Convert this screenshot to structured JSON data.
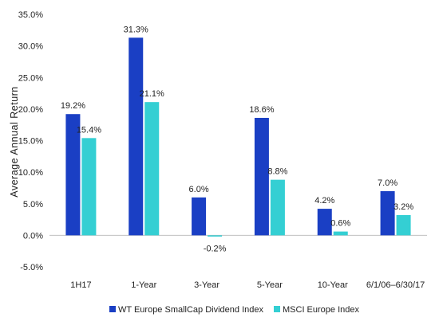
{
  "chart_data": {
    "type": "bar",
    "ylabel": "Average Annual Return",
    "xlabel": "",
    "ylim": [
      -5,
      35
    ],
    "y_ticks": [
      "-5.0%",
      "0.0%",
      "5.0%",
      "10.0%",
      "15.0%",
      "20.0%",
      "25.0%",
      "30.0%",
      "35.0%"
    ],
    "grid": false,
    "legend_position": "bottom",
    "categories": [
      "1H17",
      "1-Year",
      "3-Year",
      "5-Year",
      "10-Year",
      "6/1/06–6/30/17"
    ],
    "series": [
      {
        "name": "WT Europe SmallCap Dividend Index",
        "color": "#1a3fc4",
        "values": [
          19.2,
          31.3,
          6.0,
          18.6,
          4.2,
          7.0
        ],
        "labels": [
          "19.2%",
          "31.3%",
          "6.0%",
          "18.6%",
          "4.2%",
          "7.0%"
        ]
      },
      {
        "name": "MSCI Europe Index",
        "color": "#34cfd3",
        "values": [
          15.4,
          21.1,
          -0.2,
          8.8,
          0.6,
          3.2
        ],
        "labels": [
          "15.4%",
          "21.1%",
          "-0.2%",
          "8.8%",
          "0.6%",
          "3.2%"
        ]
      }
    ]
  }
}
